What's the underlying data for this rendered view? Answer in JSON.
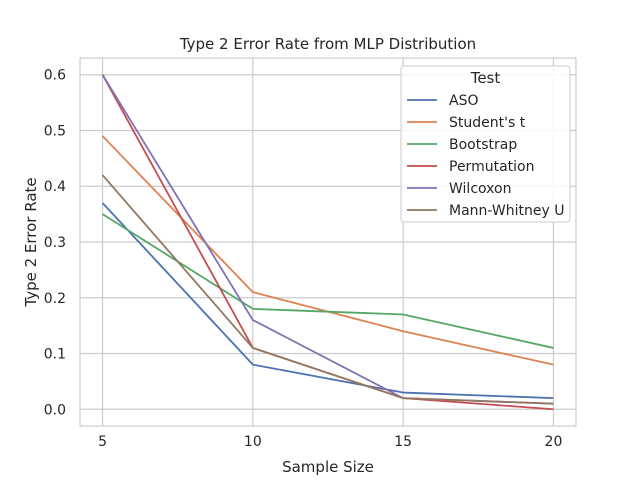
{
  "chart_data": {
    "type": "line",
    "title": "Type 2 Error Rate from MLP Distribution",
    "xlabel": "Sample Size",
    "ylabel": "Type 2 Error Rate",
    "x": [
      5,
      10,
      15,
      20
    ],
    "xticks": [
      "5",
      "10",
      "15",
      "20"
    ],
    "yticks": [
      "0.0",
      "0.1",
      "0.2",
      "0.3",
      "0.4",
      "0.5",
      "0.6"
    ],
    "xlim": [
      4.25,
      20.75
    ],
    "ylim": [
      -0.03,
      0.63
    ],
    "grid": true,
    "legend": {
      "title": "Test",
      "placement": "top-right"
    },
    "series": [
      {
        "name": "ASO",
        "color": "#4c72b0",
        "values": [
          0.37,
          0.08,
          0.03,
          0.02
        ]
      },
      {
        "name": "Student's t",
        "color": "#dd8452",
        "values": [
          0.49,
          0.21,
          0.14,
          0.08
        ]
      },
      {
        "name": "Bootstrap",
        "color": "#55a868",
        "values": [
          0.35,
          0.18,
          0.17,
          0.11
        ]
      },
      {
        "name": "Permutation",
        "color": "#c44e52",
        "values": [
          0.6,
          0.11,
          0.02,
          0.0
        ]
      },
      {
        "name": "Wilcoxon",
        "color": "#8172b3",
        "values": [
          0.6,
          0.16,
          0.02,
          0.01
        ]
      },
      {
        "name": "Mann-Whitney U",
        "color": "#937860",
        "values": [
          0.42,
          0.11,
          0.02,
          0.01
        ]
      }
    ]
  }
}
